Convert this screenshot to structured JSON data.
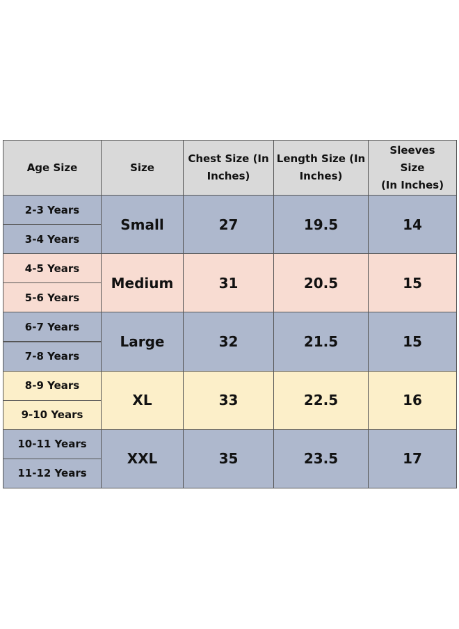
{
  "table": {
    "header": [
      [
        "Age Size"
      ],
      [
        "Size"
      ],
      [
        "Chest Size (In",
        "Inches)"
      ],
      [
        "Length Size (In",
        "Inches)"
      ],
      [
        "Sleeves",
        "Size",
        "(In Inches)"
      ]
    ],
    "rows": [
      {
        "color": "#aeb8cd",
        "ages": [
          "2-3 Years",
          "3-4 Years"
        ],
        "size": "Small",
        "chest": 27,
        "length": 19.5,
        "sleeves": 14
      },
      {
        "color": "#f8dcd2",
        "ages": [
          "4-5 Years",
          "5-6 Years"
        ],
        "size": "Medium",
        "chest": 31,
        "length": 20.5,
        "sleeves": 15
      },
      {
        "color": "#aeb8cd",
        "ages": [
          "6-7 Years",
          "7-8 Years"
        ],
        "size": "Large",
        "chest": 32,
        "length": 21.5,
        "sleeves": 15
      },
      {
        "color": "#fcefc9",
        "ages": [
          "8-9 Years",
          "9-10 Years"
        ],
        "size": "XL",
        "chest": 33,
        "length": 22.5,
        "sleeves": 16
      },
      {
        "color": "#aeb8cd",
        "ages": [
          "10-11 Years",
          "11-12 Years"
        ],
        "size": "XXL",
        "chest": 35,
        "length": 23.5,
        "sleeves": 17
      }
    ]
  }
}
